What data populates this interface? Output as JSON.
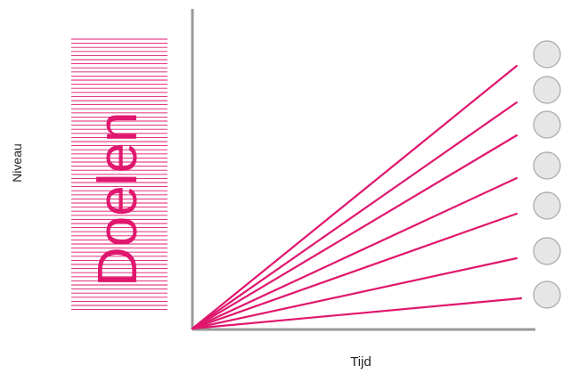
{
  "diagram": {
    "y_label": "Niveau",
    "x_label": "Tijd",
    "goals_title": "Doelen",
    "line_count": 7,
    "markers_count": 7,
    "colors": {
      "accent": "#e0176e",
      "axis": "#9a9a9a",
      "marker_fill": "#e6e6e6",
      "marker_stroke": "#a8a8a8",
      "text": "#222222"
    }
  }
}
